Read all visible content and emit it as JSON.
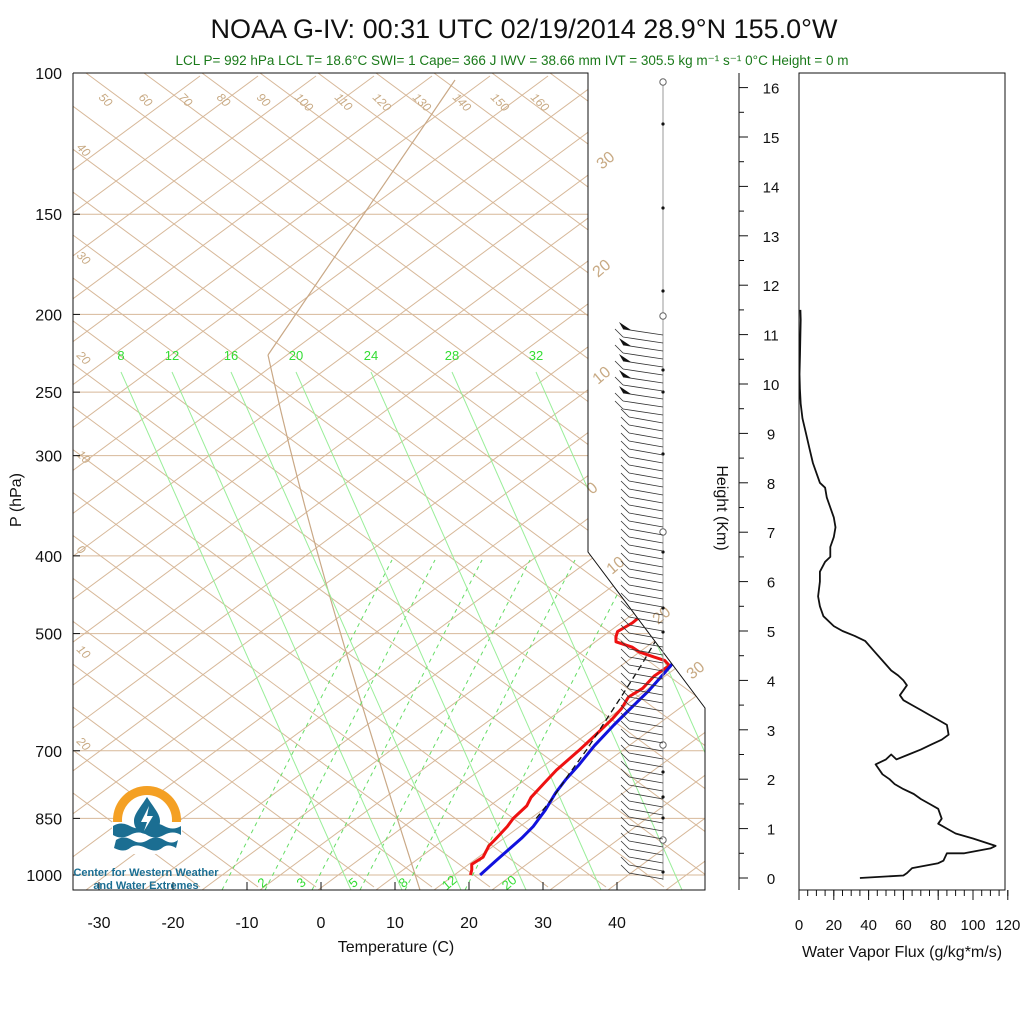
{
  "title": "NOAA G-IV: 00:31 UTC 02/19/2014  28.9°N 155.0°W",
  "subtitle": "LCL P= 992 hPa  LCL T= 18.6°C  SWI= 1  Cape= 366 J  IWV = 38.66 mm  IVT = 305.5 kg m⁻¹ s⁻¹  0°C Height = 0 m",
  "logo": {
    "line1": "Center for Western Weather",
    "line2": "and Water Extremes"
  },
  "colors": {
    "temperature": "#ee1111",
    "dewpoint_label": "#1a7a1a",
    "parcel": "#111111",
    "adiabat": "#d7b899",
    "mixing_ratio": "#33dd33",
    "blue_profile": "#1111dd"
  },
  "chart_data": [
    {
      "type": "line",
      "chart_kind": "skew-t",
      "xlabel": "Temperature (C)",
      "ylabel": "P (hPa)",
      "x_ticks": [
        "-30",
        "-20",
        "-10",
        "0",
        "10",
        "20",
        "30",
        "40"
      ],
      "pressure_ticks": [
        "100",
        "150",
        "200",
        "250",
        "300",
        "400",
        "500",
        "700",
        "850",
        "1000"
      ],
      "ylim": [
        1000,
        100
      ],
      "log_scale_y": true,
      "dry_adiabat_labels": [
        "50",
        "60",
        "70",
        "80",
        "90",
        "100",
        "110",
        "120",
        "130",
        "140",
        "150",
        "160",
        "40",
        "30",
        "20",
        "10",
        "0",
        "10",
        "20"
      ],
      "moist_adiabat_labels": [
        "30",
        "20",
        "10",
        "0",
        "10",
        "20",
        "30"
      ],
      "mixing_ratio_top_labels": [
        "8",
        "12",
        "16",
        "20",
        "24",
        "28",
        "32"
      ],
      "mixing_ratio_bottom_labels": [
        "2",
        "3",
        "5",
        "8",
        "12",
        "20"
      ],
      "series": [
        {
          "key": "red",
          "color": "#ee1111",
          "points": [
            [
              20.2,
              1000
            ],
            [
              19.4,
              985
            ],
            [
              18.4,
              970
            ],
            [
              18.6,
              950
            ],
            [
              17.3,
              920
            ],
            [
              16.9,
              900
            ],
            [
              16.2,
              870
            ],
            [
              15.5,
              850
            ],
            [
              15.0,
              820
            ],
            [
              14.0,
              800
            ],
            [
              13.2,
              770
            ],
            [
              12.4,
              740
            ],
            [
              11.8,
              700
            ],
            [
              11.2,
              670
            ],
            [
              10.5,
              640
            ],
            [
              9.8,
              620
            ],
            [
              8.6,
              600
            ],
            [
              8.9,
              585
            ],
            [
              8.2,
              565
            ],
            [
              8.3,
              548
            ],
            [
              6.7,
              540
            ],
            [
              4.7,
              535
            ],
            [
              1.7,
              527
            ],
            [
              -0.1,
              520
            ],
            [
              -3.3,
              512
            ],
            [
              -4.2,
              505
            ],
            [
              -5.0,
              497
            ],
            [
              -4.6,
              485
            ],
            [
              -4.8,
              470
            ],
            [
              -3.6,
              455
            ],
            [
              -2.4,
              445
            ],
            [
              1.1,
              440
            ],
            [
              3.6,
              430
            ],
            [
              4.1,
              420
            ],
            [
              1.8,
              410
            ],
            [
              0.2,
              405
            ],
            [
              -0.8,
              395
            ],
            [
              -1.5,
              385
            ],
            [
              -2.3,
              375
            ],
            [
              -1.6,
              365
            ],
            [
              -3.2,
              355
            ],
            [
              -4.3,
              342
            ],
            [
              -6.2,
              330
            ],
            [
              -8.4,
              318
            ],
            [
              -10.1,
              305
            ],
            [
              -10.6,
              295
            ],
            [
              -11.4,
              285
            ],
            [
              -13.5,
              277
            ],
            [
              -18.5,
              270
            ],
            [
              -20.2,
              264
            ],
            [
              -18.9,
              258
            ],
            [
              -17.3,
              252
            ],
            [
              -16.1,
              245
            ],
            [
              -15.1,
              238
            ],
            [
              -14.4,
              231
            ],
            [
              -12.5,
              225
            ],
            [
              -11.4,
              218
            ],
            [
              -10.9,
              213
            ],
            [
              -10.8,
              210
            ]
          ]
        },
        {
          "key": "blue",
          "color": "#1111dd",
          "points": [
            [
              21.5,
              1000
            ],
            [
              21.0,
              960
            ],
            [
              20.3,
              900
            ],
            [
              19.7,
              870
            ],
            [
              18.3,
              830
            ],
            [
              16.5,
              790
            ],
            [
              15.4,
              760
            ],
            [
              14.5,
              730
            ],
            [
              13.0,
              690
            ],
            [
              11.8,
              650
            ],
            [
              11.0,
              620
            ],
            [
              10.2,
              590
            ],
            [
              8.6,
              550
            ],
            [
              7.0,
              520
            ],
            [
              5.2,
              490
            ],
            [
              3.2,
              460
            ],
            [
              1.0,
              430
            ],
            [
              -0.6,
              410
            ],
            [
              -2.6,
              385
            ],
            [
              -4.9,
              360
            ],
            [
              -8.0,
              335
            ],
            [
              -11.5,
              310
            ],
            [
              -15.3,
              290
            ],
            [
              -19.3,
              275
            ],
            [
              -20.9,
              269
            ],
            [
              -20.5,
              265
            ],
            [
              -18.2,
              261
            ],
            [
              -15.8,
              257
            ],
            [
              -12.8,
              250
            ],
            [
              -11.0,
              240
            ],
            [
              -9.4,
              230
            ],
            [
              -8.7,
              222
            ],
            [
              -8.2,
              215
            ],
            [
              -8.3,
              210
            ]
          ]
        },
        {
          "key": "parcel",
          "color": "#111111",
          "dashed": true,
          "points": [
            [
              18.6,
              850
            ],
            [
              17.0,
              800
            ],
            [
              14.9,
              750
            ],
            [
              12.8,
              700
            ],
            [
              10.3,
              650
            ],
            [
              7.6,
              600
            ],
            [
              4.6,
              550
            ],
            [
              1.1,
              500
            ],
            [
              -2.8,
              450
            ],
            [
              -7.4,
              400
            ],
            [
              -10.2,
              375
            ],
            [
              -13.4,
              350
            ],
            [
              -17.1,
              325
            ],
            [
              -21.3,
              300
            ],
            [
              -22.8,
              293
            ],
            [
              -24.4,
              285
            ]
          ]
        }
      ]
    },
    {
      "type": "line",
      "chart_kind": "profile",
      "xlabel": "Water Vapor Flux (g/kg*m/s)",
      "ylabel": "Height (Km)",
      "x_ticks": [
        "0",
        "20",
        "40",
        "60",
        "80",
        "100",
        "120"
      ],
      "y_ticks": [
        "0",
        "1",
        "2",
        "3",
        "4",
        "5",
        "6",
        "7",
        "8",
        "9",
        "10",
        "11",
        "12",
        "13",
        "14",
        "15",
        "16"
      ],
      "xlim": [
        0,
        120
      ],
      "ylim": [
        0,
        16
      ],
      "series": [
        {
          "color": "#111111",
          "points": [
            [
              35,
              0
            ],
            [
              60,
              0.05
            ],
            [
              62,
              0.1
            ],
            [
              65,
              0.2
            ],
            [
              80,
              0.3
            ],
            [
              83,
              0.35
            ],
            [
              85,
              0.5
            ],
            [
              95,
              0.5
            ],
            [
              110,
              0.6
            ],
            [
              113,
              0.65
            ],
            [
              100,
              0.8
            ],
            [
              90,
              0.9
            ],
            [
              85,
              1.0
            ],
            [
              80,
              1.1
            ],
            [
              82,
              1.2
            ],
            [
              80,
              1.4
            ],
            [
              75,
              1.5
            ],
            [
              70,
              1.6
            ],
            [
              66,
              1.7
            ],
            [
              60,
              1.8
            ],
            [
              55,
              1.9
            ],
            [
              52,
              2.0
            ],
            [
              48,
              2.1
            ],
            [
              44,
              2.3
            ],
            [
              50,
              2.4
            ],
            [
              53,
              2.5
            ],
            [
              56,
              2.4
            ],
            [
              63,
              2.5
            ],
            [
              70,
              2.6
            ],
            [
              76,
              2.7
            ],
            [
              82,
              2.8
            ],
            [
              86,
              2.9
            ],
            [
              85,
              3.1
            ],
            [
              80,
              3.2
            ],
            [
              75,
              3.3
            ],
            [
              70,
              3.4
            ],
            [
              65,
              3.5
            ],
            [
              60,
              3.6
            ],
            [
              58,
              3.7
            ],
            [
              60,
              3.8
            ],
            [
              62,
              3.9
            ],
            [
              60,
              4.0
            ],
            [
              57,
              4.1
            ],
            [
              53,
              4.2
            ],
            [
              48,
              4.4
            ],
            [
              43,
              4.6
            ],
            [
              38,
              4.8
            ],
            [
              32,
              4.9
            ],
            [
              25,
              5.0
            ],
            [
              20,
              5.1
            ],
            [
              14,
              5.3
            ],
            [
              12,
              5.5
            ],
            [
              11,
              5.7
            ],
            [
              12,
              6.0
            ],
            [
              12,
              6.2
            ],
            [
              15,
              6.4
            ],
            [
              18,
              6.5
            ],
            [
              18,
              6.7
            ],
            [
              20,
              6.9
            ],
            [
              21,
              7.1
            ],
            [
              20,
              7.3
            ],
            [
              18,
              7.5
            ],
            [
              16,
              7.7
            ],
            [
              15,
              7.9
            ],
            [
              12,
              8.0
            ],
            [
              10,
              8.2
            ],
            [
              8,
              8.4
            ],
            [
              6,
              8.7
            ],
            [
              4,
              9.0
            ],
            [
              2,
              9.3
            ],
            [
              1,
              9.6
            ],
            [
              0.5,
              9.9
            ],
            [
              0.3,
              10.2
            ],
            [
              0.6,
              10.6
            ],
            [
              0.8,
              11.0
            ],
            [
              1,
              11.3
            ],
            [
              0.8,
              11.5
            ]
          ]
        }
      ]
    }
  ]
}
